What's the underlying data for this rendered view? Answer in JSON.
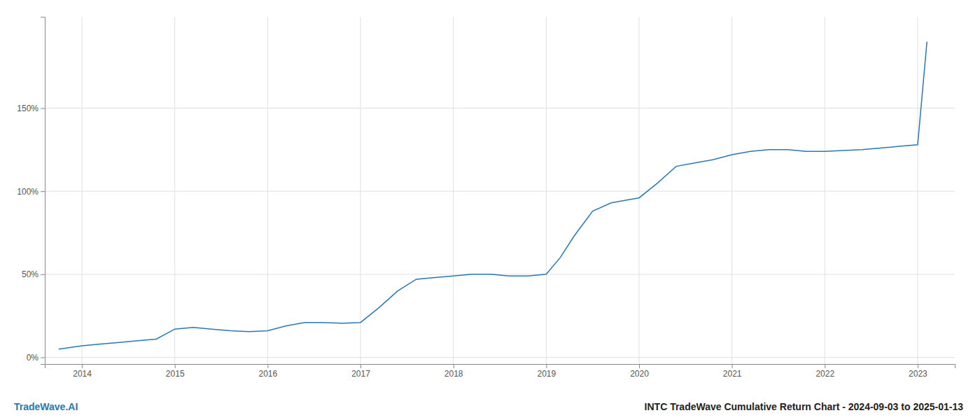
{
  "chart_data": {
    "type": "line",
    "title": "INTC TradeWave Cumulative Return Chart - 2024-09-03 to 2025-01-13",
    "annotations": [
      {
        "text": "TradeWave.AI"
      }
    ],
    "color": "#2878b8",
    "grid": true,
    "x": [
      2013.75,
      2014.0,
      2014.2,
      2014.4,
      2014.6,
      2014.8,
      2015.0,
      2015.2,
      2015.4,
      2015.6,
      2015.8,
      2016.0,
      2016.2,
      2016.4,
      2016.6,
      2016.8,
      2017.0,
      2017.2,
      2017.4,
      2017.6,
      2017.8,
      2018.0,
      2018.2,
      2018.4,
      2018.6,
      2018.8,
      2019.0,
      2019.15,
      2019.3,
      2019.5,
      2019.7,
      2019.9,
      2020.0,
      2020.2,
      2020.4,
      2020.6,
      2020.8,
      2021.0,
      2021.2,
      2021.4,
      2021.6,
      2021.8,
      2022.0,
      2022.2,
      2022.4,
      2022.6,
      2022.8,
      2023.0,
      2023.1
    ],
    "values": [
      0.05,
      0.07,
      0.08,
      0.09,
      0.1,
      0.11,
      0.17,
      0.18,
      0.17,
      0.16,
      0.155,
      0.16,
      0.19,
      0.21,
      0.21,
      0.205,
      0.21,
      0.3,
      0.4,
      0.47,
      0.48,
      0.49,
      0.5,
      0.5,
      0.49,
      0.49,
      0.5,
      0.6,
      0.73,
      0.88,
      0.93,
      0.95,
      0.96,
      1.05,
      1.15,
      1.17,
      1.19,
      1.22,
      1.24,
      1.25,
      1.25,
      1.24,
      1.24,
      1.245,
      1.25,
      1.26,
      1.27,
      1.28,
      1.9
    ],
    "xlim": [
      2013.6,
      2023.4
    ],
    "xticks": [
      2014,
      2015,
      2016,
      2017,
      2018,
      2019,
      2020,
      2021,
      2022,
      2023
    ],
    "ylim": [
      -0.04,
      2.05
    ],
    "yticks": [
      {
        "value": 0.0,
        "label": "0%"
      },
      {
        "value": 0.5,
        "label": "50%"
      },
      {
        "value": 1.0,
        "label": "100%"
      },
      {
        "value": 1.5,
        "label": "150%"
      }
    ]
  }
}
